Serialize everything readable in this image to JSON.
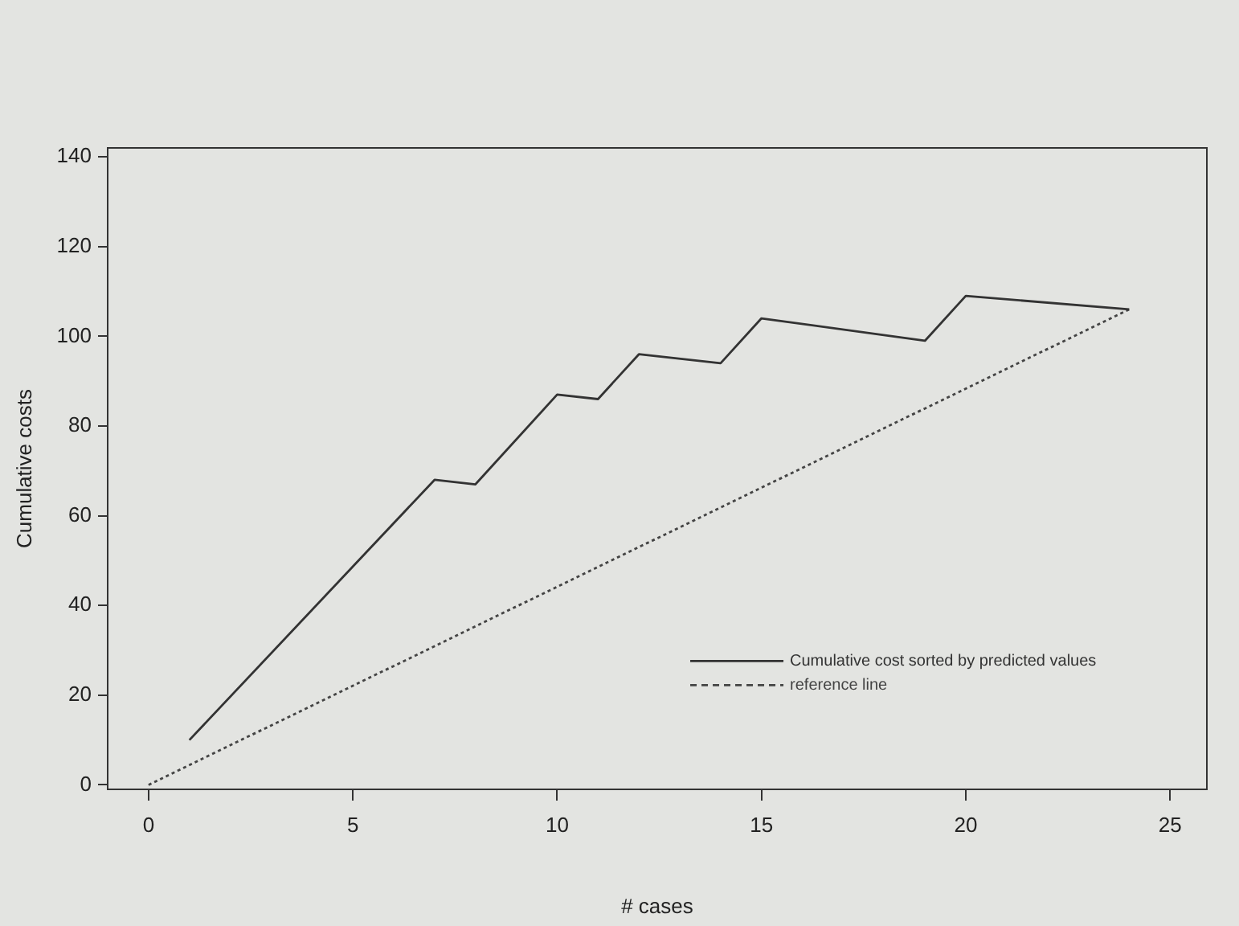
{
  "chart_data": {
    "type": "line",
    "xlabel": "# cases",
    "ylabel": "Cumulative costs",
    "xlim": [
      -1,
      25.9
    ],
    "xticks": [
      0,
      5,
      10,
      15,
      20,
      25
    ],
    "ylim": [
      -1,
      142
    ],
    "yticks": [
      0,
      20,
      40,
      60,
      80,
      100,
      120,
      140
    ],
    "legend": "bottom right",
    "marker": "none",
    "series": [
      {
        "name": "Cumulative cost sorted by predicted values",
        "color": "#333333",
        "line_style": "solid",
        "x": [
          1,
          7,
          8,
          10,
          11,
          12,
          14,
          15,
          19,
          20,
          24
        ],
        "values": [
          10,
          68,
          67,
          87,
          86,
          96,
          94,
          104,
          99,
          109,
          106
        ]
      },
      {
        "name": "reference line",
        "color": "#444444",
        "line_style": "dotted",
        "x": [
          0,
          24
        ],
        "values": [
          0,
          106
        ]
      }
    ]
  }
}
